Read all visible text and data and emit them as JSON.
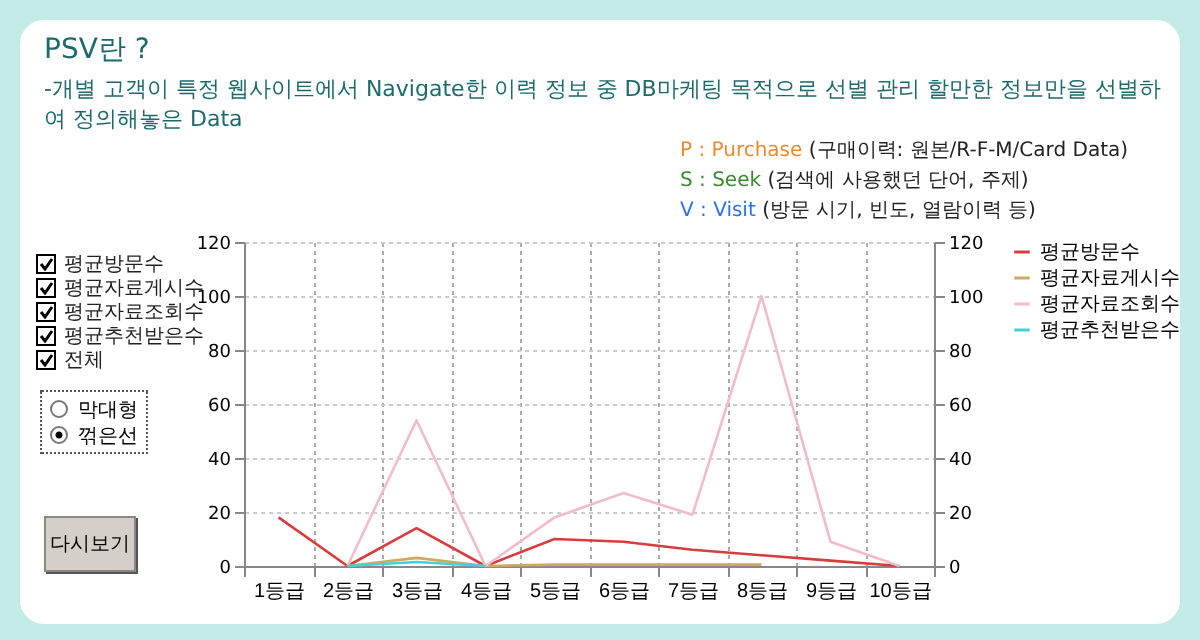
{
  "chart_data": {
    "type": "line",
    "title": "PSV란 ?",
    "subtitle": "-개별 고객이 특정 웹사이트에서 Navigate한 이력 정보 중 DB마케팅 목적으로  선별 관리 할만한 정보만을 선별하여 정의해놓은 Data",
    "categories": [
      "1등급",
      "2등급",
      "3등급",
      "4등급",
      "5등급",
      "6등급",
      "7등급",
      "8등급",
      "9등급",
      "10등급"
    ],
    "series": [
      {
        "name": "평균방문수",
        "color": "#d83c3c",
        "values": [
          18,
          0,
          14,
          0,
          10,
          9,
          6,
          4,
          2,
          0
        ]
      },
      {
        "name": "평균자료게시수",
        "color": "#d0a860",
        "values": [
          null,
          0,
          3,
          0,
          0.5,
          0.5,
          0.5,
          0.5,
          null,
          null
        ]
      },
      {
        "name": "평균자료조회수",
        "color": "#f2bccb",
        "values": [
          null,
          0,
          54,
          0,
          18,
          27,
          19,
          100,
          9,
          0
        ]
      },
      {
        "name": "평균추천받은수",
        "color": "#48d0d8",
        "values": [
          null,
          0,
          1.5,
          0,
          null,
          null,
          null,
          null,
          null,
          null
        ]
      }
    ],
    "ylim": [
      0,
      120
    ],
    "yticks": [
      0,
      20,
      40,
      60,
      80,
      100,
      120
    ],
    "y2lim": [
      0,
      120
    ],
    "y2ticks": [
      0,
      20,
      40,
      60,
      80,
      100,
      120
    ],
    "grid": true,
    "legend": "right",
    "marker": "none",
    "line_style": "solid",
    "annotations": [
      "P : Purchase (구매이력: 원본/R-F-M/Card Data)",
      "S : Seek (검색에 사용했던 단어, 주제)",
      "V : Visit (방문 시기, 빈도, 열람이력  등)",
      "평균방문수",
      "평균자료게시수",
      "평균자료조회수",
      "평균추천받은수",
      "전체",
      "막대형",
      "꺾은선",
      "다시보기"
    ]
  }
}
